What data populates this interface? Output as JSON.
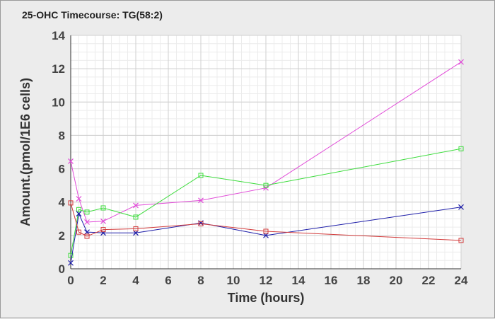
{
  "chart_data": {
    "type": "line",
    "title": "25-OHC Timecourse: TG(58:2)",
    "xlabel": "Time (hours)",
    "ylabel": "Amount.(pmol/1E6 cells)",
    "xlim": [
      0,
      24
    ],
    "ylim": [
      0,
      14
    ],
    "xticks": [
      0,
      2,
      4,
      6,
      8,
      10,
      12,
      14,
      16,
      18,
      20,
      22,
      24
    ],
    "yticks": [
      0,
      2,
      4,
      6,
      8,
      10,
      12,
      14
    ],
    "grid": true,
    "legend": "none",
    "series": [
      {
        "color": "#e14bd8",
        "marker": "x",
        "x": [
          0,
          0.5,
          1,
          2,
          4,
          8,
          12,
          24
        ],
        "y": [
          6.45,
          4.2,
          2.8,
          2.85,
          3.8,
          4.1,
          4.85,
          12.4
        ]
      },
      {
        "color": "#3cdc3c",
        "marker": "square",
        "x": [
          0,
          0.5,
          1,
          2,
          4,
          8,
          12,
          24
        ],
        "y": [
          0.8,
          3.55,
          3.4,
          3.65,
          3.1,
          5.6,
          5.0,
          7.2
        ]
      },
      {
        "color": "#1c1ca8",
        "marker": "x",
        "x": [
          0,
          0.5,
          1,
          2,
          4,
          8,
          12,
          24
        ],
        "y": [
          0.35,
          3.3,
          2.2,
          2.15,
          2.15,
          2.75,
          2.0,
          3.7
        ]
      },
      {
        "color": "#d23a3a",
        "marker": "square",
        "x": [
          0,
          0.5,
          1,
          2,
          4,
          8,
          12,
          24
        ],
        "y": [
          3.95,
          2.2,
          1.95,
          2.35,
          2.4,
          2.7,
          2.25,
          1.7
        ]
      }
    ]
  }
}
